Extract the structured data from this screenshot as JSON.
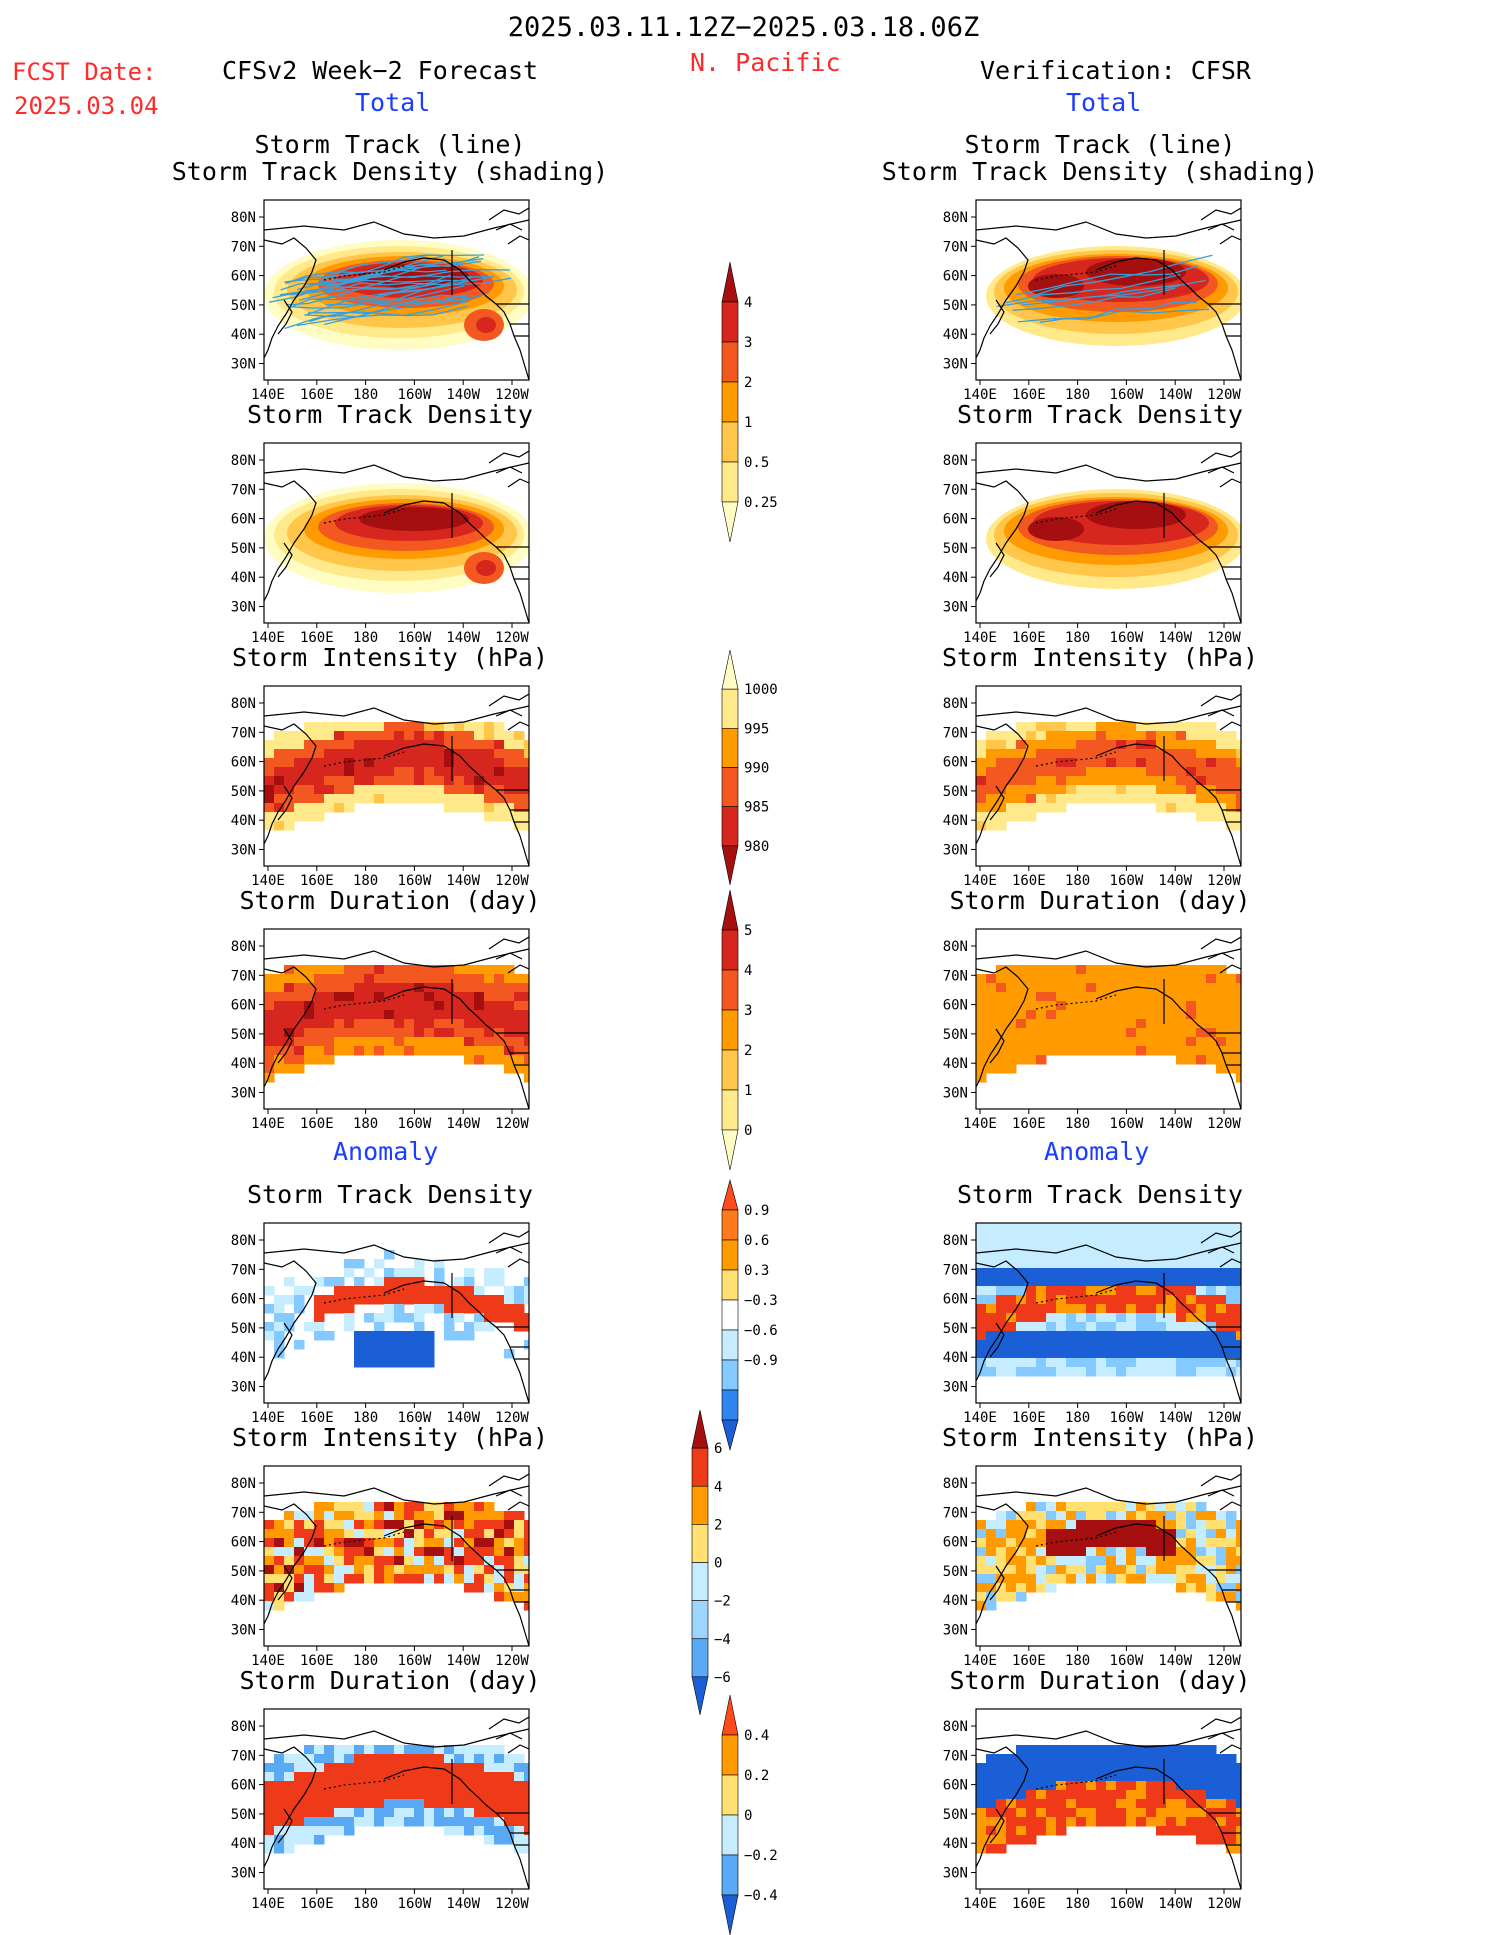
{
  "header": {
    "date_range": "2025.03.11.12Z−2025.03.18.06Z",
    "fcst_label": "FCST Date:",
    "fcst_date": "2025.03.04",
    "region": "N. Pacific",
    "left_title": "CFSv2 Week−2 Forecast",
    "right_title": "Verification: CFSR",
    "total_label": "Total",
    "anomaly_label": "Anomaly"
  },
  "panel_titles": {
    "storm_track_line": "Storm Track (line)",
    "storm_track_density_shading": "Storm Track Density (shading)",
    "density": "Storm Track Density",
    "intensity": "Storm Intensity (hPa)",
    "duration": "Storm Duration (day)"
  },
  "axes": {
    "lon_ticks": [
      "140E",
      "160E",
      "180",
      "160W",
      "140W",
      "120W"
    ],
    "lat_ticks": [
      "80N",
      "70N",
      "60N",
      "50N",
      "40N",
      "30N"
    ]
  },
  "colorbars": {
    "density_total": {
      "labels": [
        "4",
        "3",
        "2",
        "1",
        "0.5",
        "0.25"
      ],
      "colors": [
        "#a50f0f",
        "#d7261e",
        "#f2581f",
        "#ff9a00",
        "#ffc64a",
        "#ffe98a",
        "#fffcc4"
      ]
    },
    "intensity_total": {
      "labels": [
        "1000",
        "995",
        "990",
        "985",
        "980"
      ],
      "colors": [
        "#fffcc4",
        "#ffe98a",
        "#ff9a00",
        "#f2581f",
        "#d7261e",
        "#a50f0f"
      ]
    },
    "duration_total": {
      "labels": [
        "5",
        "4",
        "3",
        "2",
        "1",
        "0"
      ],
      "colors": [
        "#a50f0f",
        "#d7261e",
        "#f2581f",
        "#ff9a00",
        "#ffc64a",
        "#ffe98a",
        "#fffcc4"
      ]
    },
    "density_anom": {
      "labels": [
        "0.9",
        "0.6",
        "0.3",
        "−0.3",
        "−0.6",
        "−0.9"
      ],
      "colors": [
        "#ff4a1a",
        "#ff7a1a",
        "#ff9a00",
        "#ffe070",
        "#ffffff",
        "#c5ecff",
        "#84c9ff",
        "#2f86ee",
        "#1b5fd6"
      ]
    },
    "intensity_anom": {
      "labels": [
        "6",
        "4",
        "2",
        "0",
        "−2",
        "−4",
        "−6"
      ],
      "colors": [
        "#a50f0f",
        "#ef3a1a",
        "#ff9a00",
        "#ffe070",
        "#c5ecff",
        "#9dd5ff",
        "#5aa9f5",
        "#1b5fd6"
      ]
    },
    "duration_anom": {
      "labels": [
        "0.4",
        "0.2",
        "0",
        "−0.2",
        "−0.4"
      ],
      "colors": [
        "#ff4a1a",
        "#ff9a00",
        "#ffe070",
        "#c5ecff",
        "#5aa9f5",
        "#1b5fd6"
      ]
    }
  },
  "chart_data": [
    {
      "type": "heatmap",
      "panel": "forecast-total-storm-track",
      "title": "Storm Track (line) Storm Track Density (shading)"
    },
    {
      "type": "heatmap",
      "panel": "verification-total-storm-track",
      "title": "Storm Track (line) Storm Track Density (shading)"
    },
    {
      "type": "heatmap",
      "panel": "forecast-total-density",
      "title": "Storm Track Density"
    },
    {
      "type": "heatmap",
      "panel": "verification-total-density",
      "title": "Storm Track Density"
    },
    {
      "type": "heatmap",
      "panel": "forecast-total-intensity",
      "title": "Storm Intensity (hPa)"
    },
    {
      "type": "heatmap",
      "panel": "verification-total-intensity",
      "title": "Storm Intensity (hPa)"
    },
    {
      "type": "heatmap",
      "panel": "forecast-total-duration",
      "title": "Storm Duration (day)"
    },
    {
      "type": "heatmap",
      "panel": "verification-total-duration",
      "title": "Storm Duration (day)"
    },
    {
      "type": "heatmap",
      "panel": "forecast-anomaly-density",
      "title": "Storm Track Density"
    },
    {
      "type": "heatmap",
      "panel": "verification-anomaly-density",
      "title": "Storm Track Density"
    },
    {
      "type": "heatmap",
      "panel": "forecast-anomaly-intensity",
      "title": "Storm Intensity (hPa)"
    },
    {
      "type": "heatmap",
      "panel": "verification-anomaly-intensity",
      "title": "Storm Intensity (hPa)"
    },
    {
      "type": "heatmap",
      "panel": "forecast-anomaly-duration",
      "title": "Storm Duration (day)"
    },
    {
      "type": "heatmap",
      "panel": "verification-anomaly-duration",
      "title": "Storm Duration (day)"
    }
  ]
}
